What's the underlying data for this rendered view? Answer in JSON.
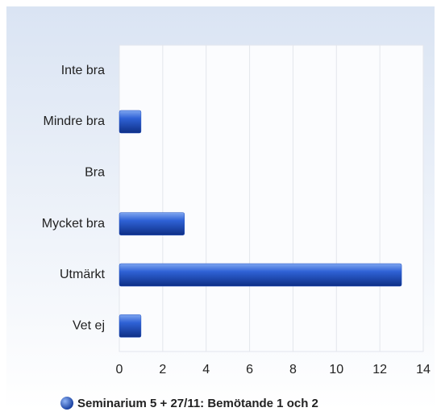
{
  "chart_data": {
    "type": "bar",
    "orientation": "horizontal",
    "categories": [
      "Inte bra",
      "Mindre bra",
      "Bra",
      "Mycket bra",
      "Utmärkt",
      "Vet ej"
    ],
    "series": [
      {
        "name": "Seminarium 5 + 27/11: Bemötande 1 och 2",
        "color": "#1f4fc0",
        "values": [
          0,
          1,
          0,
          3,
          13,
          1
        ]
      }
    ],
    "xlim": [
      0,
      14
    ],
    "xticks": [
      0,
      2,
      4,
      6,
      8,
      10,
      12,
      14
    ],
    "grid": true,
    "legend": "bottom"
  }
}
